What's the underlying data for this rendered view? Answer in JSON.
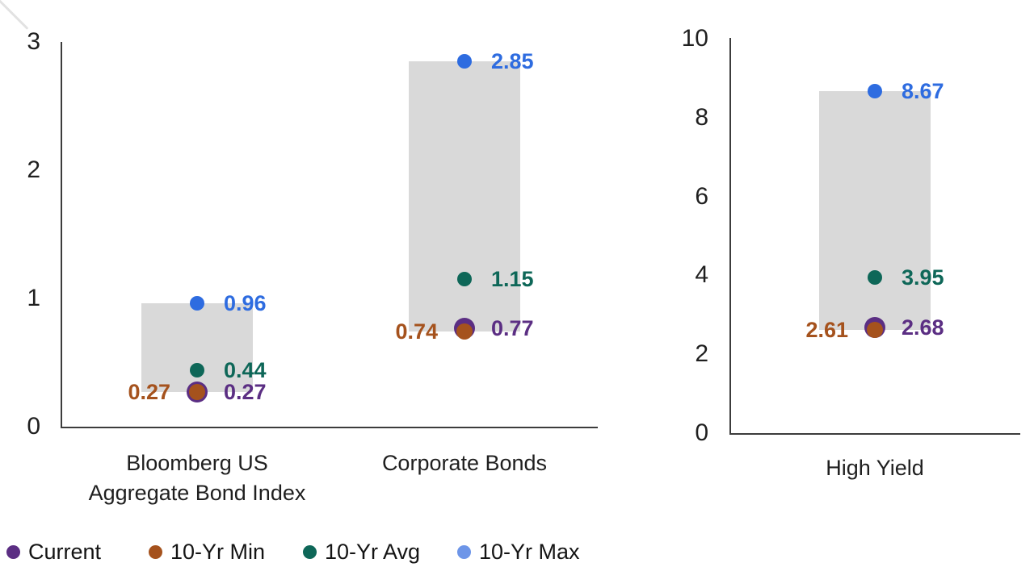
{
  "colors": {
    "current": "#5b2e83",
    "min": "#a5521d",
    "avg": "#0e6758",
    "max": "#2e6ce0",
    "range_bar": "#d9d9d9",
    "axis": "#3c3c3c",
    "tick_text": "#1f1f1f"
  },
  "legend": {
    "items": [
      {
        "label": "Current",
        "series": "current",
        "color": "#5b2e83"
      },
      {
        "label": "10-Yr Min",
        "series": "min",
        "color": "#a5521d"
      },
      {
        "label": "10-Yr Avg",
        "series": "avg",
        "color": "#0e6758"
      },
      {
        "label": "10-Yr Max",
        "series": "max",
        "color": "#6d95e8"
      }
    ]
  },
  "chart_data": [
    {
      "type": "scatter",
      "title": "",
      "categories": [
        "Bloomberg US Aggregate Bond Index",
        "Corporate Bonds"
      ],
      "category_lines": [
        [
          "Bloomberg US",
          "Aggregate Bond Index"
        ],
        [
          "Corporate Bonds"
        ]
      ],
      "series": [
        {
          "name": "Current",
          "key": "current",
          "values": [
            0.27,
            0.77
          ]
        },
        {
          "name": "10-Yr Min",
          "key": "min",
          "values": [
            0.27,
            0.74
          ]
        },
        {
          "name": "10-Yr Avg",
          "key": "avg",
          "values": [
            0.44,
            1.15
          ]
        },
        {
          "name": "10-Yr Max",
          "key": "max",
          "values": [
            0.96,
            2.85
          ]
        }
      ],
      "range_bars": [
        [
          0.27,
          0.96
        ],
        [
          0.74,
          2.85
        ]
      ],
      "point_labels": [
        {
          "current": "0.27",
          "min": "0.27",
          "avg": "0.44",
          "max": "0.96"
        },
        {
          "current": "0.77",
          "min": "0.74",
          "avg": "1.15",
          "max": "2.85"
        }
      ],
      "ylim": [
        0,
        3
      ],
      "yticks": [
        0,
        1,
        2,
        3
      ],
      "xlabel": "",
      "ylabel": "",
      "grid": false,
      "legend_position": "bottom"
    },
    {
      "type": "scatter",
      "title": "",
      "categories": [
        "High Yield"
      ],
      "category_lines": [
        [
          "High Yield"
        ]
      ],
      "series": [
        {
          "name": "Current",
          "key": "current",
          "values": [
            2.68
          ]
        },
        {
          "name": "10-Yr Min",
          "key": "min",
          "values": [
            2.61
          ]
        },
        {
          "name": "10-Yr Avg",
          "key": "avg",
          "values": [
            3.95
          ]
        },
        {
          "name": "10-Yr Max",
          "key": "max",
          "values": [
            8.67
          ]
        }
      ],
      "range_bars": [
        [
          2.61,
          8.67
        ]
      ],
      "point_labels": [
        {
          "current": "2.68",
          "min": "2.61",
          "avg": "3.95",
          "max": "8.67"
        }
      ],
      "ylim": [
        0,
        10
      ],
      "yticks": [
        0,
        2,
        4,
        6,
        8,
        10
      ],
      "xlabel": "",
      "ylabel": "",
      "grid": false,
      "legend_position": "bottom"
    }
  ]
}
